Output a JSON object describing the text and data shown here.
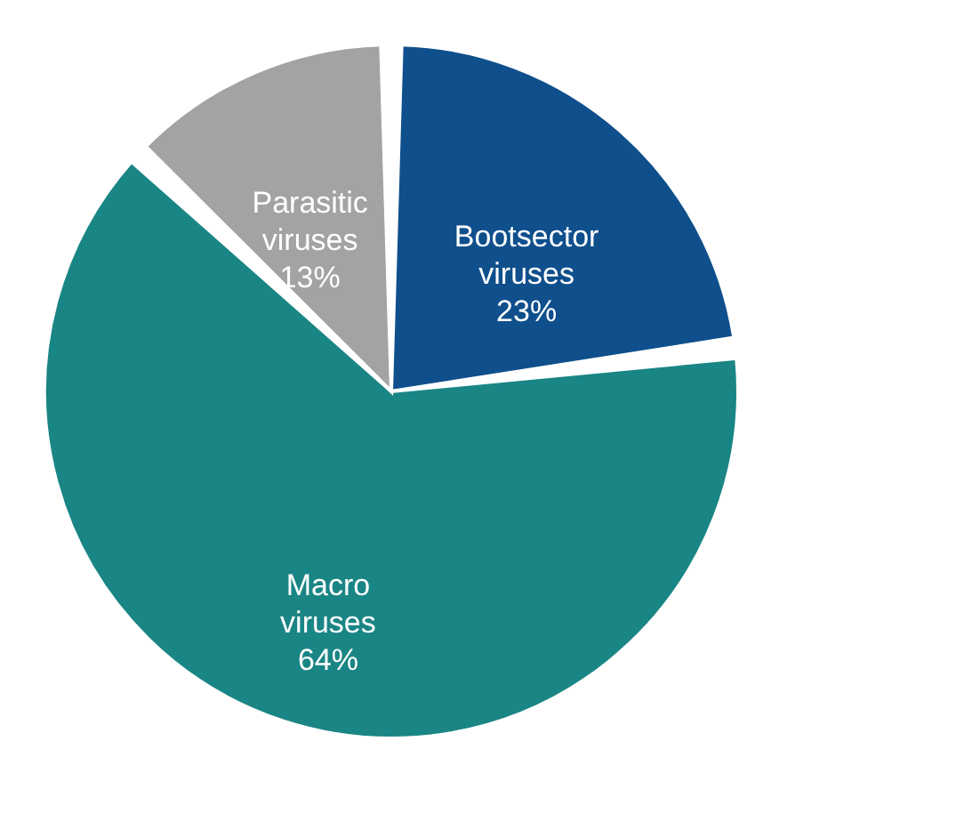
{
  "chart_data": {
    "type": "pie",
    "categories": [
      "Bootsector viruses",
      "Macro viruses",
      "Parasitic viruses"
    ],
    "values": [
      23,
      64,
      13
    ],
    "colors": [
      "#0f4f8c",
      "#1a8585",
      "#a3a3a3"
    ],
    "value_labels": [
      "23%",
      "64%",
      "13%"
    ],
    "legend": false
  }
}
